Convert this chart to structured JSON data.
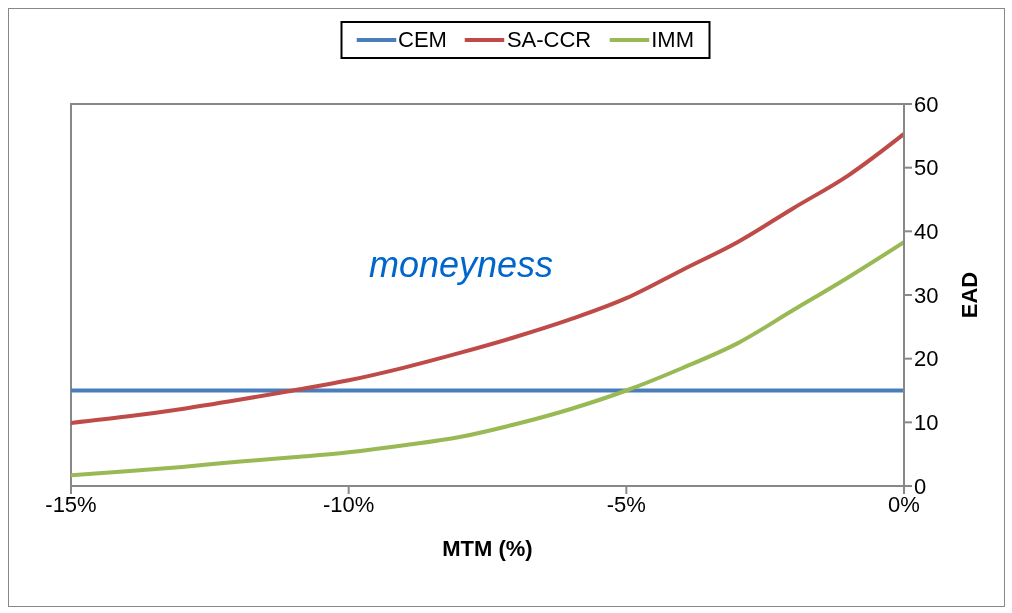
{
  "chart_data": {
    "type": "line",
    "xlabel": "MTM (%)",
    "ylabel": "EAD",
    "x": [
      -15,
      -14,
      -13,
      -12,
      -11,
      -10,
      -9,
      -8,
      -7,
      -6,
      -5,
      -4,
      -3,
      -2,
      -1,
      0
    ],
    "series": [
      {
        "name": "CEM",
        "color": "#4a7ebb",
        "values": [
          15,
          15,
          15,
          15,
          15,
          15,
          15,
          15,
          15,
          15,
          15,
          15,
          15,
          15,
          15,
          15
        ]
      },
      {
        "name": "SA-CCR",
        "color": "#be4b48",
        "values": [
          9.9,
          10.9,
          12.1,
          13.5,
          15,
          16.6,
          18.6,
          20.9,
          23.4,
          26.2,
          29.5,
          33.9,
          38.3,
          43.6,
          48.8,
          55.3
        ]
      },
      {
        "name": "IMM",
        "color": "#98b954",
        "values": [
          1.7,
          2.3,
          3,
          3.8,
          4.5,
          5.3,
          6.4,
          7.7,
          9.7,
          12.1,
          15,
          18.5,
          22.4,
          27.6,
          32.8,
          38.3
        ]
      }
    ],
    "xlim": [
      -15,
      0
    ],
    "xticks": [
      {
        "value": -15,
        "label": "-15%"
      },
      {
        "value": -10,
        "label": "-10%"
      },
      {
        "value": -5,
        "label": "-5%"
      },
      {
        "value": 0,
        "label": "0%"
      }
    ],
    "ylim": [
      0,
      60
    ],
    "yticks": [
      0,
      10,
      20,
      30,
      40,
      50,
      60
    ],
    "annotations": [
      "moneyness"
    ],
    "grid": false,
    "legend": "top",
    "marker": "none",
    "line_style": "solid"
  }
}
